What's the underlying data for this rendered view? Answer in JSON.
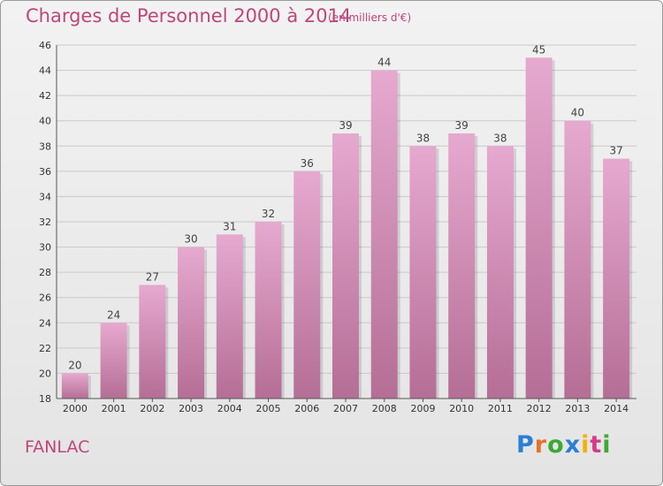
{
  "title": "Charges de Personnel 2000 à 2014",
  "subtitle": "(en milliers d'€)",
  "commune": "FANLAC",
  "logo": {
    "text": "Proxiti",
    "letters": [
      "P",
      "r",
      "o",
      "x",
      "i",
      "t",
      "i"
    ],
    "colors": [
      "#2a7fd4",
      "#e8712b",
      "#3aaa35",
      "#2a7fd4",
      "#f0b400",
      "#d63a8a",
      "#3aaa35"
    ]
  },
  "colors": {
    "accent": "#c0457a",
    "bar_top": "#e6a9cf",
    "bar_bottom": "#b56e96",
    "grid": "#c9c9c9"
  },
  "chart_data": {
    "type": "bar",
    "categories": [
      "2000",
      "2001",
      "2002",
      "2003",
      "2004",
      "2005",
      "2006",
      "2007",
      "2008",
      "2009",
      "2010",
      "2011",
      "2012",
      "2013",
      "2014"
    ],
    "values": [
      20,
      24,
      27,
      30,
      31,
      32,
      36,
      39,
      44,
      38,
      39,
      38,
      45,
      40,
      37
    ],
    "title": "Charges de Personnel 2000 à 2014",
    "ylim": [
      18,
      46
    ],
    "yticks": [
      18,
      20,
      22,
      24,
      26,
      28,
      30,
      32,
      34,
      36,
      38,
      40,
      42,
      44,
      46
    ],
    "grid": true,
    "data_labels": true
  }
}
